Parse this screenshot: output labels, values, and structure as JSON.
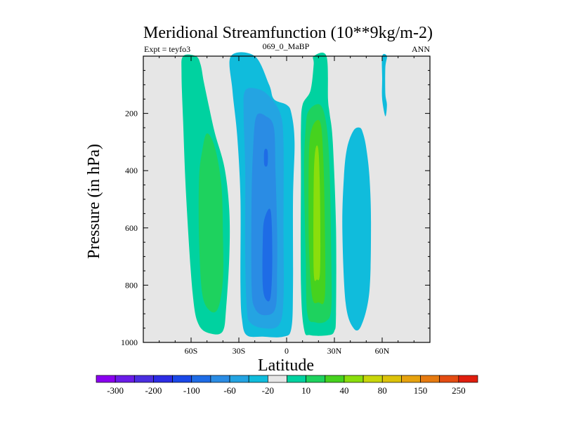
{
  "chart_data": {
    "type": "heatmap",
    "title": "Meridional Streamfunction (10**9kg/m-2)",
    "left_subtitle": "Expt = teyfo3",
    "center_subtitle": "069_0_MaBP",
    "right_subtitle": "ANN",
    "xlabel": "Latitude",
    "ylabel": "Pressure (in hPa)",
    "xlim": [
      -90,
      90
    ],
    "ylim": [
      0,
      1000
    ],
    "y_inverted": true,
    "x_ticks": [
      {
        "value": -60,
        "label": "60S"
      },
      {
        "value": -30,
        "label": "30S"
      },
      {
        "value": 0,
        "label": "0"
      },
      {
        "value": 30,
        "label": "30N"
      },
      {
        "value": 60,
        "label": "60N"
      }
    ],
    "y_ticks": [
      {
        "value": 200,
        "label": "200"
      },
      {
        "value": 400,
        "label": "400"
      },
      {
        "value": 600,
        "label": "600"
      },
      {
        "value": 800,
        "label": "800"
      },
      {
        "value": 1000,
        "label": "1000"
      }
    ],
    "background_color": "#e6e6e6",
    "colorbar": {
      "colors": [
        "#8a00f0",
        "#6a1ce8",
        "#4a2ee0",
        "#2c2ce4",
        "#1a48e8",
        "#1e6ce6",
        "#2a8ce4",
        "#24a4e2",
        "#10bcdc",
        "#e6e6e6",
        "#00d2a0",
        "#1ed25e",
        "#46d21e",
        "#8ade0c",
        "#c8d60a",
        "#dcc20a",
        "#e6a20e",
        "#e67a10",
        "#e44c12",
        "#e01e0e"
      ],
      "labels": [
        "-300",
        "-200",
        "-100",
        "-60",
        "-20",
        "10",
        "40",
        "80",
        "150",
        "250"
      ],
      "label_after_box": [
        1,
        3,
        5,
        7,
        9,
        11,
        13,
        15,
        17,
        19
      ]
    },
    "contours": [
      {
        "name": "sh-positive-cell-outer",
        "level": 10,
        "color": "#00d2a0",
        "points": [
          [
            -65,
            0
          ],
          [
            -57,
            0
          ],
          [
            -54,
            30
          ],
          [
            -52,
            90
          ],
          [
            -49,
            170
          ],
          [
            -45,
            270
          ],
          [
            -39,
            390
          ],
          [
            -36,
            540
          ],
          [
            -36,
            700
          ],
          [
            -38,
            880
          ],
          [
            -40,
            960
          ],
          [
            -47,
            970
          ],
          [
            -55,
            940
          ],
          [
            -59,
            830
          ],
          [
            -63,
            500
          ],
          [
            -65,
            230
          ],
          [
            -66,
            60
          ]
        ]
      },
      {
        "name": "sh-positive-cell-inner",
        "level": 40,
        "color": "#1ed25e",
        "points": [
          [
            -50,
            270
          ],
          [
            -45,
            320
          ],
          [
            -41,
            450
          ],
          [
            -40,
            620
          ],
          [
            -40,
            780
          ],
          [
            -43,
            880
          ],
          [
            -48,
            890
          ],
          [
            -53,
            830
          ],
          [
            -55,
            640
          ],
          [
            -55,
            430
          ],
          [
            -53,
            330
          ]
        ]
      },
      {
        "name": "sh-negative-cell-1",
        "level": -10,
        "color": "#10bcdc",
        "points": [
          [
            -35,
            0
          ],
          [
            -20,
            0
          ],
          [
            -11,
            100
          ],
          [
            -8,
            150
          ],
          [
            0,
            170
          ],
          [
            3,
            200
          ],
          [
            5,
            300
          ],
          [
            4,
            500
          ],
          [
            4,
            800
          ],
          [
            3,
            950
          ],
          [
            -2,
            980
          ],
          [
            -15,
            980
          ],
          [
            -25,
            975
          ],
          [
            -28,
            920
          ],
          [
            -29,
            800
          ],
          [
            -29,
            500
          ],
          [
            -31,
            280
          ],
          [
            -34,
            120
          ]
        ]
      },
      {
        "name": "sh-negative-cell-2",
        "level": -20,
        "color": "#24a4e2",
        "points": [
          [
            -26,
            120
          ],
          [
            -18,
            115
          ],
          [
            -11,
            140
          ],
          [
            -4,
            200
          ],
          [
            -2,
            300
          ],
          [
            -2,
            600
          ],
          [
            -2,
            850
          ],
          [
            -5,
            940
          ],
          [
            -15,
            950
          ],
          [
            -23,
            930
          ],
          [
            -25,
            880
          ],
          [
            -26,
            700
          ],
          [
            -26,
            400
          ],
          [
            -27,
            200
          ]
        ]
      },
      {
        "name": "sh-negative-cell-3",
        "level": -40,
        "color": "#2a8ce4",
        "points": [
          [
            -19,
            210
          ],
          [
            -13,
            210
          ],
          [
            -8,
            250
          ],
          [
            -7,
            400
          ],
          [
            -6,
            600
          ],
          [
            -6,
            750
          ],
          [
            -7,
            880
          ],
          [
            -14,
            905
          ],
          [
            -20,
            880
          ],
          [
            -22,
            800
          ],
          [
            -22,
            500
          ],
          [
            -21,
            320
          ]
        ]
      },
      {
        "name": "sh-negative-cell-4",
        "level": -60,
        "color": "#1e6ce6",
        "points": [
          [
            -14,
            330
          ],
          [
            -12,
            330
          ],
          [
            -12,
            380
          ],
          [
            -14,
            380
          ]
        ]
      },
      {
        "name": "sh-negative-cell-5",
        "level": -60,
        "color": "#1e6ce6",
        "points": [
          [
            -14,
            570
          ],
          [
            -10,
            540
          ],
          [
            -9,
            700
          ],
          [
            -10,
            840
          ],
          [
            -13,
            850
          ],
          [
            -15,
            800
          ],
          [
            -15,
            650
          ]
        ]
      },
      {
        "name": "nh-positive-cell-1",
        "level": 10,
        "color": "#00d2a0",
        "points": [
          [
            17,
            0
          ],
          [
            25,
            0
          ],
          [
            26,
            150
          ],
          [
            27,
            200
          ],
          [
            29,
            300
          ],
          [
            31,
            600
          ],
          [
            31,
            900
          ],
          [
            30,
            960
          ],
          [
            26,
            975
          ],
          [
            15,
            975
          ],
          [
            11,
            955
          ],
          [
            9,
            800
          ],
          [
            9,
            400
          ],
          [
            9,
            250
          ],
          [
            10,
            170
          ],
          [
            15,
            120
          ],
          [
            17,
            30
          ]
        ]
      },
      {
        "name": "nh-positive-cell-2",
        "level": 40,
        "color": "#1ed25e",
        "points": [
          [
            14,
            190
          ],
          [
            21,
            170
          ],
          [
            25,
            240
          ],
          [
            27,
            400
          ],
          [
            28,
            700
          ],
          [
            28,
            880
          ],
          [
            25,
            925
          ],
          [
            18,
            930
          ],
          [
            13,
            900
          ],
          [
            12,
            700
          ],
          [
            11,
            400
          ],
          [
            12,
            250
          ]
        ]
      },
      {
        "name": "nh-positive-cell-3",
        "level": 80,
        "color": "#46d21e",
        "points": [
          [
            16,
            250
          ],
          [
            21,
            230
          ],
          [
            23,
            350
          ],
          [
            24,
            600
          ],
          [
            24,
            840
          ],
          [
            20,
            860
          ],
          [
            16,
            840
          ],
          [
            14,
            650
          ],
          [
            14,
            350
          ]
        ]
      },
      {
        "name": "nh-positive-cell-4",
        "level": 80,
        "color": "#8ade0c",
        "points": [
          [
            18,
            330
          ],
          [
            20,
            330
          ],
          [
            21,
            500
          ],
          [
            21,
            750
          ],
          [
            19,
            780
          ],
          [
            17,
            750
          ],
          [
            17,
            450
          ]
        ]
      },
      {
        "name": "nh-negative-cell-1",
        "level": -10,
        "color": "#10bcdc",
        "points": [
          [
            42,
            260
          ],
          [
            46,
            250
          ],
          [
            48,
            270
          ],
          [
            50,
            320
          ],
          [
            52,
            420
          ],
          [
            53,
            580
          ],
          [
            52,
            820
          ],
          [
            47,
            940
          ],
          [
            42,
            950
          ],
          [
            37,
            860
          ],
          [
            35,
            600
          ],
          [
            36,
            420
          ],
          [
            38,
            320
          ]
        ]
      },
      {
        "name": "nh-negative-cell-2",
        "level": -10,
        "color": "#10bcdc",
        "points": [
          [
            60,
            0
          ],
          [
            63,
            0
          ],
          [
            62,
            40
          ],
          [
            62,
            130
          ],
          [
            63,
            170
          ],
          [
            62,
            210
          ],
          [
            60,
            150
          ],
          [
            60,
            80
          ]
        ]
      }
    ]
  }
}
